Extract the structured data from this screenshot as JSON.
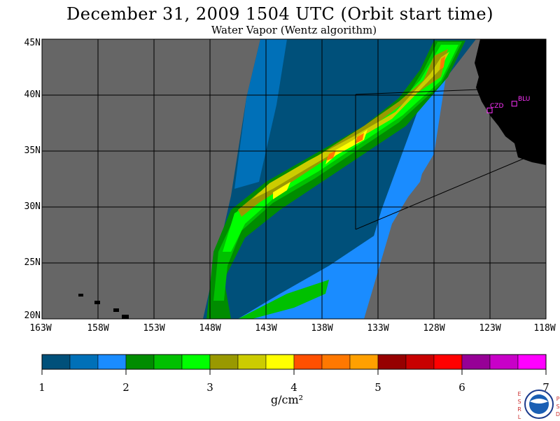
{
  "title": "December 31, 2009  1504 UTC  (Orbit start time)",
  "subtitle": "Water Vapor (Wentz algorithm)",
  "map": {
    "lon_range": [
      -163,
      -118
    ],
    "lat_range": [
      20,
      45
    ],
    "lat_labels": [
      "45N",
      "40N",
      "35N",
      "30N",
      "25N",
      "20N"
    ],
    "lon_labels": [
      "163W",
      "158W",
      "153W",
      "148W",
      "143W",
      "138W",
      "133W",
      "128W",
      "123W",
      "118W"
    ],
    "stations": [
      {
        "code": "CZD",
        "lon": -123.0,
        "lat": 38.6
      },
      {
        "code": "BLU",
        "lon": -120.8,
        "lat": 39.2
      }
    ],
    "colors": {
      "no_data": "#666666",
      "land": "#000000",
      "station": "#ff33ff"
    }
  },
  "colorbar": {
    "labels": [
      "1",
      "2",
      "3",
      "4",
      "5",
      "6",
      "7"
    ],
    "units": "g/cm²",
    "colors": [
      "#00507a",
      "#0070b8",
      "#1a8cff",
      "#008c00",
      "#00c000",
      "#00ff00",
      "#999900",
      "#cccc00",
      "#ffff00",
      "#ff5000",
      "#ff7800",
      "#ffa000",
      "#960000",
      "#c80000",
      "#ff0000",
      "#960096",
      "#c800c8",
      "#ff00ff"
    ]
  },
  "logo": {
    "left_letters": [
      "E",
      "S",
      "R",
      "L"
    ],
    "right_letters": [
      "P",
      "S",
      "D"
    ],
    "name": "NOAA"
  }
}
